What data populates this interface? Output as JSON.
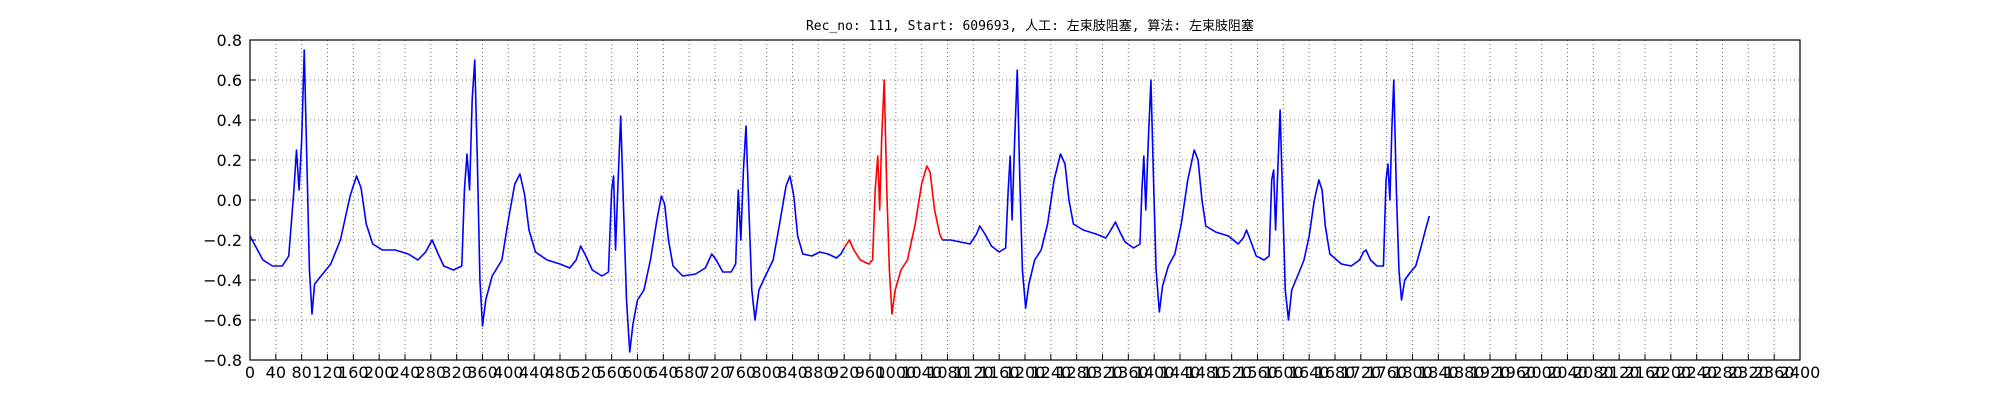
{
  "chart_data": {
    "type": "line",
    "title": "Rec_no: 111, Start: 609693, 人工: 左束肢阻塞, 算法: 左束肢阻塞",
    "xlabel": "",
    "ylabel": "",
    "xlim": [
      0,
      2400
    ],
    "ylim": [
      -0.8,
      0.8
    ],
    "grid": true,
    "yticks": [
      -0.8,
      -0.6,
      -0.4,
      -0.2,
      0.0,
      0.2,
      0.4,
      0.6,
      0.8
    ],
    "ytick_labels": [
      "−0.8",
      "−0.6",
      "−0.4",
      "−0.2",
      "0.0",
      "0.2",
      "0.4",
      "0.6",
      "0.8"
    ],
    "xticks": [
      0,
      40,
      80,
      120,
      160,
      200,
      240,
      280,
      320,
      360,
      400,
      440,
      480,
      520,
      560,
      600,
      640,
      680,
      720,
      760,
      800,
      840,
      880,
      920,
      960,
      1000,
      1040,
      1080,
      1120,
      1160,
      1200,
      1240,
      1280,
      1320,
      1360,
      1400,
      1440,
      1480,
      1520,
      1560,
      1600,
      1640,
      1680,
      1720,
      1760,
      1800,
      1840,
      1880,
      1920,
      1960,
      2000,
      2040,
      2080,
      2120,
      2160,
      2200,
      2240,
      2280,
      2320,
      2360,
      2400
    ],
    "xtick_labels": [
      "0",
      "40",
      "80",
      "120",
      "160",
      "200",
      "240",
      "280",
      "320",
      "360",
      "400",
      "440",
      "480",
      "520",
      "560",
      "600",
      "640",
      "680",
      "720",
      "760",
      "800",
      "840",
      "880",
      "920",
      "960",
      "1000",
      "1040",
      "1080",
      "1120",
      "1160",
      "1200",
      "1240",
      "1280",
      "1320",
      "1360",
      "1400",
      "1440",
      "1480",
      "1520",
      "1560",
      "1600",
      "1640",
      "1680",
      "1720",
      "1760",
      "1800",
      "1840",
      "1880",
      "1920",
      "1960",
      "2000",
      "2040",
      "2080",
      "2120",
      "2160",
      "2200",
      "2240",
      "2280",
      "2320",
      "2360",
      "2400"
    ],
    "series": [
      {
        "color": "#0000ff",
        "segment": "before",
        "points": [
          [
            0,
            -0.18
          ],
          [
            10,
            -0.24
          ],
          [
            20,
            -0.3
          ],
          [
            35,
            -0.33
          ],
          [
            50,
            -0.33
          ],
          [
            60,
            -0.28
          ],
          [
            68,
            0.05
          ],
          [
            72,
            0.25
          ],
          [
            76,
            0.05
          ],
          [
            80,
            0.3
          ],
          [
            84,
            0.75
          ],
          [
            88,
            0.2
          ],
          [
            92,
            -0.35
          ],
          [
            96,
            -0.57
          ],
          [
            100,
            -0.42
          ],
          [
            110,
            -0.38
          ],
          [
            125,
            -0.32
          ],
          [
            140,
            -0.2
          ],
          [
            155,
            0.02
          ],
          [
            165,
            0.12
          ],
          [
            172,
            0.06
          ],
          [
            180,
            -0.12
          ],
          [
            190,
            -0.22
          ],
          [
            205,
            -0.25
          ],
          [
            225,
            -0.25
          ],
          [
            245,
            -0.27
          ],
          [
            260,
            -0.3
          ],
          [
            272,
            -0.26
          ],
          [
            282,
            -0.2
          ],
          [
            290,
            -0.26
          ],
          [
            300,
            -0.33
          ],
          [
            315,
            -0.35
          ],
          [
            328,
            -0.33
          ],
          [
            332,
            0.05
          ],
          [
            336,
            0.23
          ],
          [
            340,
            0.05
          ],
          [
            344,
            0.5
          ],
          [
            348,
            0.7
          ],
          [
            352,
            0.2
          ],
          [
            356,
            -0.4
          ],
          [
            360,
            -0.63
          ],
          [
            365,
            -0.5
          ],
          [
            375,
            -0.38
          ],
          [
            390,
            -0.3
          ],
          [
            400,
            -0.1
          ],
          [
            410,
            0.08
          ],
          [
            418,
            0.13
          ],
          [
            425,
            0.03
          ],
          [
            432,
            -0.15
          ],
          [
            442,
            -0.26
          ],
          [
            460,
            -0.3
          ],
          [
            480,
            -0.32
          ],
          [
            495,
            -0.34
          ],
          [
            505,
            -0.3
          ],
          [
            512,
            -0.23
          ],
          [
            520,
            -0.28
          ],
          [
            530,
            -0.35
          ],
          [
            545,
            -0.38
          ],
          [
            555,
            -0.36
          ],
          [
            560,
            0.05
          ],
          [
            563,
            0.12
          ],
          [
            566,
            -0.25
          ],
          [
            570,
            0.1
          ],
          [
            574,
            0.42
          ],
          [
            578,
            0.0
          ],
          [
            583,
            -0.5
          ],
          [
            588,
            -0.76
          ],
          [
            593,
            -0.62
          ],
          [
            600,
            -0.5
          ],
          [
            610,
            -0.45
          ],
          [
            620,
            -0.3
          ],
          [
            630,
            -0.1
          ],
          [
            637,
            0.02
          ],
          [
            642,
            -0.02
          ],
          [
            648,
            -0.2
          ],
          [
            655,
            -0.33
          ],
          [
            670,
            -0.38
          ],
          [
            690,
            -0.37
          ],
          [
            705,
            -0.34
          ],
          [
            715,
            -0.27
          ],
          [
            722,
            -0.3
          ],
          [
            732,
            -0.36
          ],
          [
            745,
            -0.36
          ],
          [
            752,
            -0.32
          ],
          [
            756,
            0.05
          ],
          [
            760,
            -0.2
          ],
          [
            764,
            0.15
          ],
          [
            768,
            0.37
          ],
          [
            772,
            0.0
          ],
          [
            777,
            -0.45
          ],
          [
            782,
            -0.6
          ],
          [
            788,
            -0.45
          ],
          [
            798,
            -0.38
          ],
          [
            810,
            -0.3
          ],
          [
            820,
            -0.12
          ],
          [
            830,
            0.07
          ],
          [
            836,
            0.12
          ],
          [
            842,
            0.02
          ],
          [
            848,
            -0.18
          ],
          [
            856,
            -0.27
          ],
          [
            870,
            -0.28
          ],
          [
            882,
            -0.26
          ],
          [
            895,
            -0.27
          ],
          [
            908,
            -0.29
          ],
          [
            915,
            -0.27
          ],
          [
            920,
            -0.24
          ]
        ]
      },
      {
        "color": "#ff0000",
        "segment": "highlight",
        "points": [
          [
            920,
            -0.24
          ],
          [
            928,
            -0.2
          ],
          [
            935,
            -0.25
          ],
          [
            945,
            -0.3
          ],
          [
            958,
            -0.32
          ],
          [
            964,
            -0.3
          ],
          [
            968,
            0.05
          ],
          [
            972,
            0.22
          ],
          [
            975,
            -0.05
          ],
          [
            978,
            0.3
          ],
          [
            982,
            0.6
          ],
          [
            986,
            0.05
          ],
          [
            990,
            -0.35
          ],
          [
            994,
            -0.57
          ],
          [
            999,
            -0.45
          ],
          [
            1008,
            -0.35
          ],
          [
            1018,
            -0.3
          ],
          [
            1030,
            -0.12
          ],
          [
            1040,
            0.08
          ],
          [
            1048,
            0.17
          ],
          [
            1053,
            0.14
          ],
          [
            1060,
            -0.05
          ],
          [
            1068,
            -0.17
          ],
          [
            1072,
            -0.2
          ]
        ]
      },
      {
        "color": "#0000ff",
        "segment": "after",
        "points": [
          [
            1072,
            -0.2
          ],
          [
            1085,
            -0.2
          ],
          [
            1100,
            -0.21
          ],
          [
            1115,
            -0.22
          ],
          [
            1125,
            -0.17
          ],
          [
            1130,
            -0.13
          ],
          [
            1138,
            -0.17
          ],
          [
            1148,
            -0.23
          ],
          [
            1160,
            -0.26
          ],
          [
            1170,
            -0.24
          ],
          [
            1174,
            0.05
          ],
          [
            1177,
            0.22
          ],
          [
            1180,
            -0.1
          ],
          [
            1184,
            0.3
          ],
          [
            1188,
            0.65
          ],
          [
            1192,
            0.1
          ],
          [
            1196,
            -0.35
          ],
          [
            1201,
            -0.54
          ],
          [
            1206,
            -0.42
          ],
          [
            1215,
            -0.3
          ],
          [
            1225,
            -0.25
          ],
          [
            1235,
            -0.12
          ],
          [
            1245,
            0.1
          ],
          [
            1255,
            0.23
          ],
          [
            1262,
            0.18
          ],
          [
            1268,
            0.0
          ],
          [
            1275,
            -0.12
          ],
          [
            1290,
            -0.15
          ],
          [
            1310,
            -0.17
          ],
          [
            1325,
            -0.19
          ],
          [
            1333,
            -0.15
          ],
          [
            1340,
            -0.11
          ],
          [
            1347,
            -0.16
          ],
          [
            1355,
            -0.21
          ],
          [
            1368,
            -0.24
          ],
          [
            1378,
            -0.22
          ],
          [
            1381,
            0.05
          ],
          [
            1384,
            0.22
          ],
          [
            1387,
            -0.05
          ],
          [
            1391,
            0.3
          ],
          [
            1395,
            0.6
          ],
          [
            1399,
            0.1
          ],
          [
            1403,
            -0.35
          ],
          [
            1408,
            -0.56
          ],
          [
            1413,
            -0.43
          ],
          [
            1422,
            -0.33
          ],
          [
            1432,
            -0.27
          ],
          [
            1442,
            -0.12
          ],
          [
            1452,
            0.1
          ],
          [
            1462,
            0.25
          ],
          [
            1468,
            0.2
          ],
          [
            1474,
            0.0
          ],
          [
            1480,
            -0.13
          ],
          [
            1495,
            -0.16
          ],
          [
            1515,
            -0.18
          ],
          [
            1530,
            -0.22
          ],
          [
            1538,
            -0.19
          ],
          [
            1543,
            -0.15
          ],
          [
            1550,
            -0.21
          ],
          [
            1558,
            -0.28
          ],
          [
            1570,
            -0.3
          ],
          [
            1578,
            -0.28
          ],
          [
            1582,
            0.1
          ],
          [
            1585,
            0.15
          ],
          [
            1588,
            -0.15
          ],
          [
            1592,
            0.2
          ],
          [
            1595,
            0.45
          ],
          [
            1599,
            0.0
          ],
          [
            1603,
            -0.45
          ],
          [
            1608,
            -0.6
          ],
          [
            1613,
            -0.45
          ],
          [
            1622,
            -0.38
          ],
          [
            1632,
            -0.3
          ],
          [
            1640,
            -0.18
          ],
          [
            1648,
            0.0
          ],
          [
            1655,
            0.1
          ],
          [
            1660,
            0.05
          ],
          [
            1665,
            -0.13
          ],
          [
            1672,
            -0.27
          ],
          [
            1690,
            -0.32
          ],
          [
            1705,
            -0.33
          ],
          [
            1718,
            -0.3
          ],
          [
            1724,
            -0.26
          ],
          [
            1728,
            -0.25
          ],
          [
            1735,
            -0.3
          ],
          [
            1745,
            -0.33
          ],
          [
            1755,
            -0.33
          ],
          [
            1759,
            0.1
          ],
          [
            1762,
            0.18
          ],
          [
            1765,
            0.0
          ],
          [
            1768,
            0.35
          ],
          [
            1771,
            0.6
          ],
          [
            1775,
            0.05
          ],
          [
            1779,
            -0.35
          ],
          [
            1783,
            -0.5
          ],
          [
            1788,
            -0.4
          ],
          [
            1797,
            -0.36
          ],
          [
            1805,
            -0.33
          ],
          [
            1812,
            -0.25
          ],
          [
            1820,
            -0.15
          ],
          [
            1826,
            -0.08
          ]
        ]
      }
    ]
  }
}
